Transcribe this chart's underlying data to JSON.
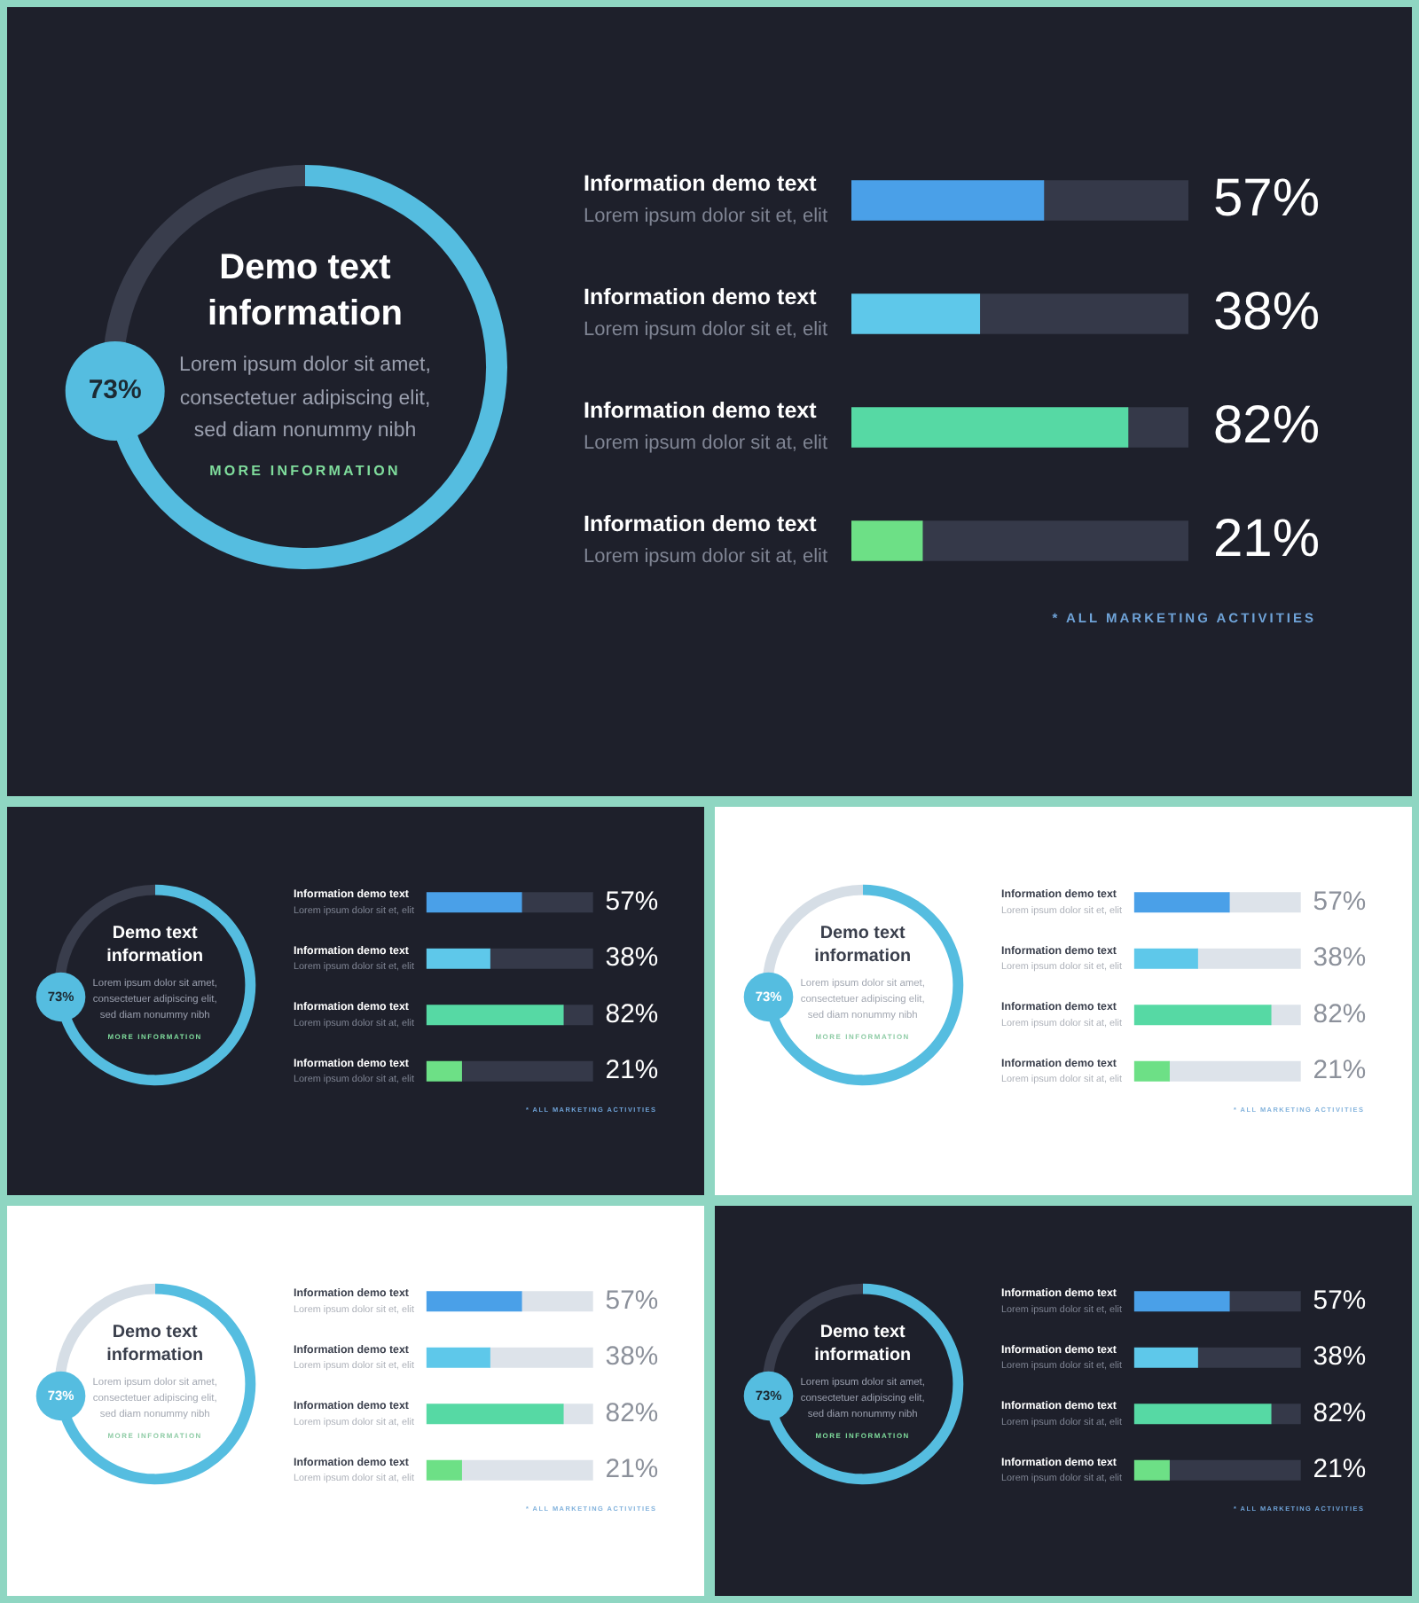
{
  "chart_data": [
    {
      "type": "donut",
      "title": "Demo text information",
      "annotations": [
        "Lorem ipsum dolor sit amet, consectetuer adipiscing elit, sed diam nonummy nibh",
        "MORE INFORMATION"
      ],
      "categories": [
        null,
        null
      ],
      "values": [
        73,
        27
      ],
      "colors": [
        "#55bde0",
        "#393d4c"
      ],
      "value_labels": [
        "73%",
        null
      ]
    },
    {
      "type": "bar",
      "orientation": "horizontal",
      "stacked": true,
      "tick_labels": "y",
      "categories": [
        "Information demo text\nLorem ipsum dolor sit et, elit",
        "Information demo text\nLorem ipsum dolor sit et, elit",
        "Information demo text\nLorem ipsum dolor sit at, elit",
        "Information demo text\nLorem ipsum dolor sit at, elit"
      ],
      "series": [
        {
          "colors": [
            "#4aa0e8",
            "#5ec8ea",
            "#56d9a4",
            "#6de086"
          ],
          "values": [
            57,
            38,
            82,
            21
          ],
          "value_labels": [
            "57%",
            "38%",
            "82%",
            "21%"
          ]
        },
        {
          "color": "#353949",
          "values": [
            43,
            62,
            18,
            79
          ]
        }
      ],
      "xlim": [
        0,
        100
      ],
      "annotations": [
        "* ALL MARKETING ACTIVITIES"
      ]
    },
    {
      "type": "donut",
      "title": "Demo text information",
      "annotations": [
        "Lorem ipsum dolor sit amet, consectetuer adipiscing elit, sed diam nonummy nibh",
        "MORE INFORMATION"
      ],
      "categories": [
        null,
        null
      ],
      "values": [
        73,
        27
      ],
      "colors": [
        "#55bde0",
        "#393d4c"
      ],
      "value_labels": [
        "73%",
        null
      ]
    },
    {
      "type": "bar",
      "orientation": "horizontal",
      "stacked": true,
      "tick_labels": "y",
      "categories": [
        "Information demo text\nLorem ipsum dolor sit et, elit",
        "Information demo text\nLorem ipsum dolor sit et, elit",
        "Information demo text\nLorem ipsum dolor sit at, elit",
        "Information demo text\nLorem ipsum dolor sit at, elit"
      ],
      "series": [
        {
          "colors": [
            "#4aa0e8",
            "#5ec8ea",
            "#56d9a4",
            "#6de086"
          ],
          "values": [
            57,
            38,
            82,
            21
          ],
          "value_labels": [
            "57%",
            "38%",
            "82%",
            "21%"
          ]
        },
        {
          "color": "#353949",
          "values": [
            43,
            62,
            18,
            79
          ]
        }
      ],
      "xlim": [
        0,
        100
      ],
      "annotations": [
        "* ALL MARKETING ACTIVITIES"
      ]
    },
    {
      "type": "donut",
      "title": "Demo text information",
      "annotations": [
        "Lorem ipsum dolor sit amet, consectetuer adipiscing elit, sed diam nonummy nibh",
        "MORE INFORMATION"
      ],
      "categories": [
        null,
        null
      ],
      "values": [
        73,
        27
      ],
      "colors": [
        "#55bde0",
        "#d6dee6"
      ],
      "value_labels": [
        "73%",
        null
      ]
    },
    {
      "type": "bar",
      "orientation": "horizontal",
      "stacked": true,
      "tick_labels": "y",
      "categories": [
        "Information demo text\nLorem ipsum dolor sit et, elit",
        "Information demo text\nLorem ipsum dolor sit et, elit",
        "Information demo text\nLorem ipsum dolor sit at, elit",
        "Information demo text\nLorem ipsum dolor sit at, elit"
      ],
      "series": [
        {
          "colors": [
            "#4aa0e8",
            "#5ec8ea",
            "#56d9a4",
            "#6de086"
          ],
          "values": [
            57,
            38,
            82,
            21
          ],
          "value_labels": [
            "57%",
            "38%",
            "82%",
            "21%"
          ]
        },
        {
          "color": "#dde3ea",
          "values": [
            43,
            62,
            18,
            79
          ]
        }
      ],
      "xlim": [
        0,
        100
      ],
      "annotations": [
        "* ALL MARKETING ACTIVITIES"
      ]
    },
    {
      "type": "donut",
      "title": "Demo text information",
      "annotations": [
        "Lorem ipsum dolor sit amet, consectetuer adipiscing elit, sed diam nonummy nibh",
        "MORE INFORMATION"
      ],
      "categories": [
        null,
        null
      ],
      "values": [
        73,
        27
      ],
      "colors": [
        "#55bde0",
        "#d6dee6"
      ],
      "value_labels": [
        "73%",
        null
      ]
    },
    {
      "type": "bar",
      "orientation": "horizontal",
      "stacked": true,
      "tick_labels": "y",
      "categories": [
        "Information demo text\nLorem ipsum dolor sit et, elit",
        "Information demo text\nLorem ipsum dolor sit et, elit",
        "Information demo text\nLorem ipsum dolor sit at, elit",
        "Information demo text\nLorem ipsum dolor sit at, elit"
      ],
      "series": [
        {
          "colors": [
            "#4aa0e8",
            "#5ec8ea",
            "#56d9a4",
            "#6de086"
          ],
          "values": [
            57,
            38,
            82,
            21
          ],
          "value_labels": [
            "57%",
            "38%",
            "82%",
            "21%"
          ]
        },
        {
          "color": "#dde3ea",
          "values": [
            43,
            62,
            18,
            79
          ]
        }
      ],
      "xlim": [
        0,
        100
      ],
      "annotations": [
        "* ALL MARKETING ACTIVITIES"
      ]
    },
    {
      "type": "donut",
      "title": "Demo text information",
      "annotations": [
        "Lorem ipsum dolor sit amet, consectetuer adipiscing elit, sed diam nonummy nibh",
        "MORE INFORMATION"
      ],
      "categories": [
        null,
        null
      ],
      "values": [
        73,
        27
      ],
      "colors": [
        "#55bde0",
        "#393d4c"
      ],
      "value_labels": [
        "73%",
        null
      ]
    },
    {
      "type": "bar",
      "orientation": "horizontal",
      "stacked": true,
      "tick_labels": "y",
      "categories": [
        "Information demo text\nLorem ipsum dolor sit et, elit",
        "Information demo text\nLorem ipsum dolor sit et, elit",
        "Information demo text\nLorem ipsum dolor sit at, elit",
        "Information demo text\nLorem ipsum dolor sit at, elit"
      ],
      "series": [
        {
          "colors": [
            "#4aa0e8",
            "#5ec8ea",
            "#56d9a4",
            "#6de086"
          ],
          "values": [
            57,
            38,
            82,
            21
          ],
          "value_labels": [
            "57%",
            "38%",
            "82%",
            "21%"
          ]
        },
        {
          "color": "#353949",
          "values": [
            43,
            62,
            18,
            79
          ]
        }
      ],
      "xlim": [
        0,
        100
      ],
      "annotations": [
        "* ALL MARKETING ACTIVITIES"
      ]
    }
  ]
}
